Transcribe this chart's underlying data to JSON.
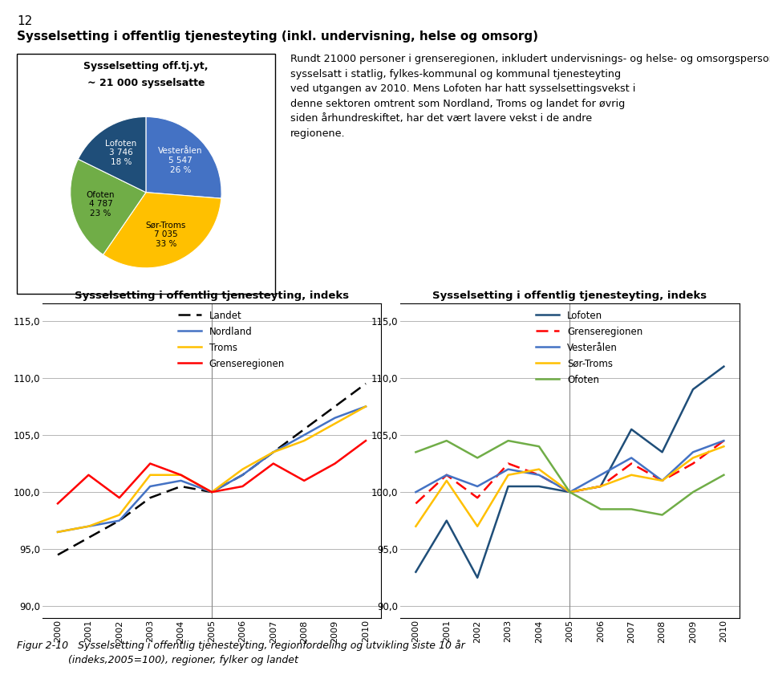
{
  "page_number": "12",
  "main_title": "Sysselsetting i offentlig tjenesteyting (inkl. undervisning, helse og omsorg)",
  "pie_title_line1": "Sysselsetting off.tj.yt,",
  "pie_title_line2": "~ 21 000 sysselsatte",
  "intro_text": "Rundt 21000 personer i grenseregionen, inkludert undervisnings- og helse- og omsorgspersonale var\nsysselsatt i statlig, fylkes-kommunal og kommunal tjenesteyting\nved utgangen av 2010. Mens Lofoten har hatt sysselsettingsvekst i\ndenne sektoren omtrent som Nordland, Troms og landet for øvrig\nsiden århundreskiftet, har det vært lavere vekst i de andre\nregionene.",
  "pie_labels": [
    "Vesterålen",
    "Sør-Troms",
    "Ofoten",
    "Lofoten"
  ],
  "pie_values": [
    5547,
    7035,
    4787,
    3746
  ],
  "pie_display": [
    {
      "label": "Vesterålen",
      "val": "5 547",
      "pct": "26 %",
      "color": "white"
    },
    {
      "label": "Sør-Troms",
      "val": "7 035",
      "pct": "33 %",
      "color": "black"
    },
    {
      "label": "Ofoten",
      "val": "4 787",
      "pct": "23 %",
      "color": "black"
    },
    {
      "label": "Lofoten",
      "val": "3 746",
      "pct": "18 %",
      "color": "white"
    }
  ],
  "pie_colors": [
    "#4472C4",
    "#FFC000",
    "#70AD47",
    "#1F4E79"
  ],
  "chart1_title": "Sysselsetting i offentlig tjenesteyting, indeks",
  "chart1_ylabel_ticks": [
    90.0,
    95.0,
    100.0,
    105.0,
    110.0,
    115.0
  ],
  "chart1_years": [
    2000,
    2001,
    2002,
    2003,
    2004,
    2005,
    2006,
    2007,
    2008,
    2009,
    2010
  ],
  "chart1_landet": [
    94.5,
    96.0,
    97.5,
    99.5,
    100.5,
    100.0,
    101.5,
    103.5,
    105.5,
    107.5,
    109.5
  ],
  "chart1_nordland": [
    96.5,
    97.0,
    97.5,
    100.5,
    101.0,
    100.0,
    101.5,
    103.5,
    105.0,
    106.5,
    107.5
  ],
  "chart1_troms": [
    96.5,
    97.0,
    98.0,
    101.5,
    101.5,
    100.0,
    102.0,
    103.5,
    104.5,
    106.0,
    107.5
  ],
  "chart1_grenseregionen": [
    99.0,
    101.5,
    99.5,
    102.5,
    101.5,
    100.0,
    100.5,
    102.5,
    101.0,
    102.5,
    104.5
  ],
  "chart1_landet_color": "#000000",
  "chart1_nordland_color": "#4472C4",
  "chart1_troms_color": "#FFC000",
  "chart1_grenseregionen_color": "#FF0000",
  "chart1_legend": [
    "Landet",
    "Nordland",
    "Troms",
    "Grenseregionen"
  ],
  "chart2_title": "Sysselsetting i offentlig tjenesteyting, indeks",
  "chart2_ylabel_ticks": [
    90.0,
    95.0,
    100.0,
    105.0,
    110.0,
    115.0
  ],
  "chart2_years": [
    2000,
    2001,
    2002,
    2003,
    2004,
    2005,
    2006,
    2007,
    2008,
    2009,
    2010
  ],
  "chart2_lofoten": [
    93.0,
    97.5,
    92.5,
    100.5,
    100.5,
    100.0,
    100.5,
    105.5,
    103.5,
    109.0,
    111.0
  ],
  "chart2_grenseregionen": [
    99.0,
    101.5,
    99.5,
    102.5,
    101.5,
    100.0,
    100.5,
    102.5,
    101.0,
    102.5,
    104.5
  ],
  "chart2_vesteralen": [
    100.0,
    101.5,
    100.5,
    102.0,
    101.5,
    100.0,
    101.5,
    103.0,
    101.0,
    103.5,
    104.5
  ],
  "chart2_sortroms": [
    97.0,
    101.0,
    97.0,
    101.5,
    102.0,
    100.0,
    100.5,
    101.5,
    101.0,
    103.0,
    104.0
  ],
  "chart2_ofoten": [
    103.5,
    104.5,
    103.0,
    104.5,
    104.0,
    100.0,
    98.5,
    98.5,
    98.0,
    100.0,
    101.5
  ],
  "chart2_lofoten_color": "#1F4E79",
  "chart2_grenseregionen_color": "#FF0000",
  "chart2_vesteralen_color": "#4472C4",
  "chart2_sortroms_color": "#FFC000",
  "chart2_ofoten_color": "#70AD47",
  "chart2_legend": [
    "Lofoten",
    "Grenseregionen",
    "Vesterålen",
    "Sør-Troms",
    "Ofoten"
  ],
  "figure_caption": "Figur 2-10   Sysselsetting i offentlig tjenesteyting, regionfordeling og utvikling siste 10 år\n                (indeks,2005=100), regioner, fylker og landet"
}
